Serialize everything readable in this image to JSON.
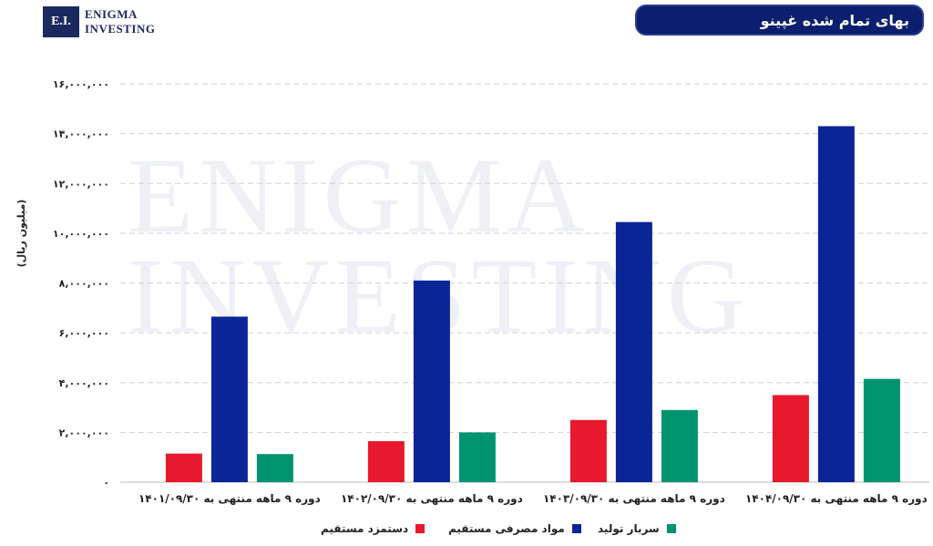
{
  "logo": {
    "mark": "E.I.",
    "line1": "ENIGMA",
    "line2": "INVESTING"
  },
  "watermark": {
    "line1": "ENIGMA",
    "line2": "INVESTING"
  },
  "chart_data": {
    "type": "bar",
    "title": "بهای تمام شده غپینو",
    "ylabel": "(میلیون ریال)",
    "xlabel": "",
    "ylim": [
      0,
      16000000
    ],
    "yticks": [
      0,
      2000000,
      4000000,
      6000000,
      8000000,
      10000000,
      12000000,
      14000000,
      16000000
    ],
    "ytick_labels": [
      "۰",
      "۲,۰۰۰,۰۰۰",
      "۴,۰۰۰,۰۰۰",
      "۶,۰۰۰,۰۰۰",
      "۸,۰۰۰,۰۰۰",
      "۱۰,۰۰۰,۰۰۰",
      "۱۲,۰۰۰,۰۰۰",
      "۱۴,۰۰۰,۰۰۰",
      "۱۶,۰۰۰,۰۰۰"
    ],
    "grid": true,
    "legend_position": "bottom",
    "categories": [
      "دوره ۹ ماهه منتهی به ۱۴۰۱/۰۹/۳۰",
      "دوره ۹ ماهه منتهی به ۱۴۰۲/۰۹/۳۰",
      "دوره ۹ ماهه منتهی به ۱۴۰۳/۰۹/۳۰",
      "دوره ۹ ماهه منتهی به ۱۴۰۴/۰۹/۳۰"
    ],
    "series": [
      {
        "name": "دستمزد مستقیم",
        "color": "#e8192c",
        "values": [
          1150000,
          1650000,
          2500000,
          3500000
        ]
      },
      {
        "name": "مواد مصرفی مستقیم",
        "color": "#0b2496",
        "values": [
          6650000,
          8100000,
          10450000,
          14300000
        ]
      },
      {
        "name": "سربار تولید",
        "color": "#009370",
        "values": [
          1130000,
          2000000,
          2900000,
          4150000
        ]
      }
    ]
  }
}
